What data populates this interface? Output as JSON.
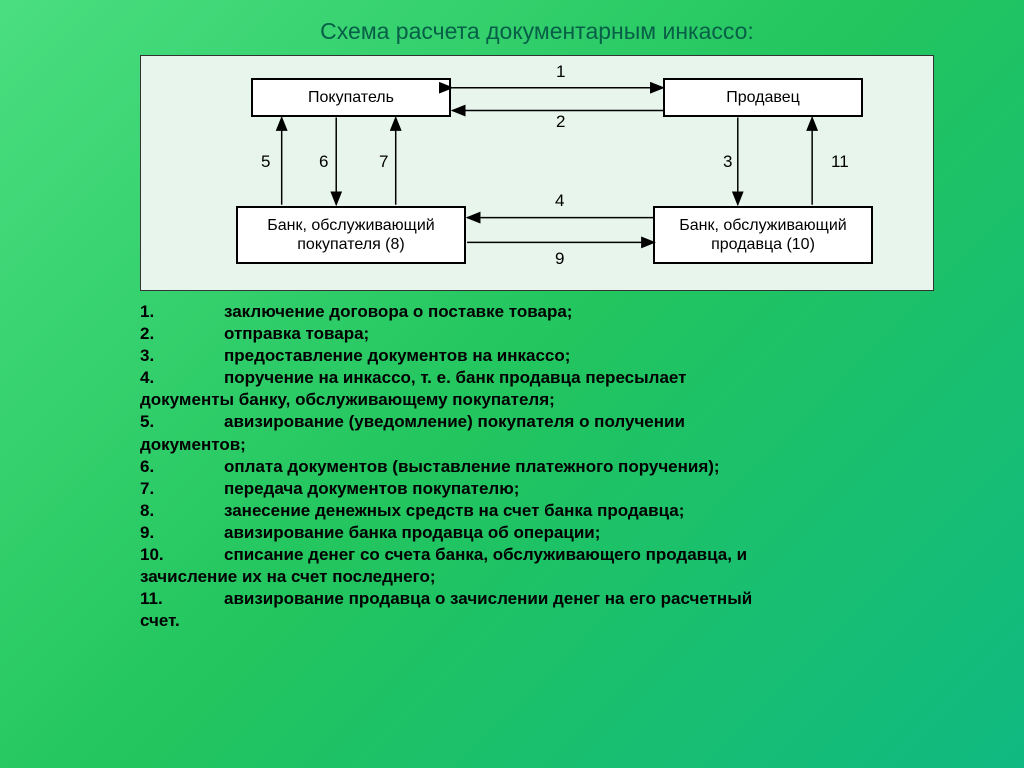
{
  "title": "Схема расчета документарным инкассо:",
  "colors": {
    "background_gradient": [
      "#4ade80",
      "#22c55e",
      "#10b981"
    ],
    "diagram_bg": "#e8f5ed",
    "node_bg": "#ffffff",
    "node_border": "#000000",
    "arrow_color": "#000000",
    "title_color": "#065f46",
    "text_color": "#000000"
  },
  "diagram": {
    "type": "flowchart",
    "nodes": {
      "buyer": {
        "label": "Покупатель"
      },
      "seller": {
        "label": "Продавец"
      },
      "bank_buyer": {
        "label": "Банк, обслуживающий\nпокупателя (8)"
      },
      "bank_seller": {
        "label": "Банк, обслуживающий\nпродавца (10)"
      }
    },
    "edge_labels": {
      "e1": "1",
      "e2": "2",
      "e3": "3",
      "e4": "4",
      "e5": "5",
      "e6": "6",
      "e7": "7",
      "e9": "9",
      "e11": "11"
    }
  },
  "steps": [
    {
      "n": "1.",
      "t": "заключение договора о поставке товара;"
    },
    {
      "n": "2.",
      "t": "отправка товара;"
    },
    {
      "n": "3.",
      "t": "предоставление документов на инкассо;"
    },
    {
      "n": "4.",
      "t": "поручение на инкассо, т. е. банк продавца пересылает"
    },
    {
      "n": "",
      "t": "документы банку, обслуживающему покупателя;"
    },
    {
      "n": "5.",
      "t": "авизирование (уведомление) покупателя о получении"
    },
    {
      "n": "",
      "t": "документов;"
    },
    {
      "n": "6.",
      "t": "оплата документов (выставление платежного поручения);"
    },
    {
      "n": "7.",
      "t": "передача документов покупателю;"
    },
    {
      "n": "8.",
      "t": "занесение денежных средств на счет банка продавца;"
    },
    {
      "n": "9.",
      "t": "авизирование банка продавца об операции;"
    },
    {
      "n": "10.",
      "t": "списание денег со счета банка, обслуживающего продавца, и"
    },
    {
      "n": "",
      "t": "зачисление их на счет последнего;"
    },
    {
      "n": "11.",
      "t": "авизирование продавца о зачислении денег на его расчетный"
    },
    {
      "n": "",
      "t": "счет."
    }
  ]
}
